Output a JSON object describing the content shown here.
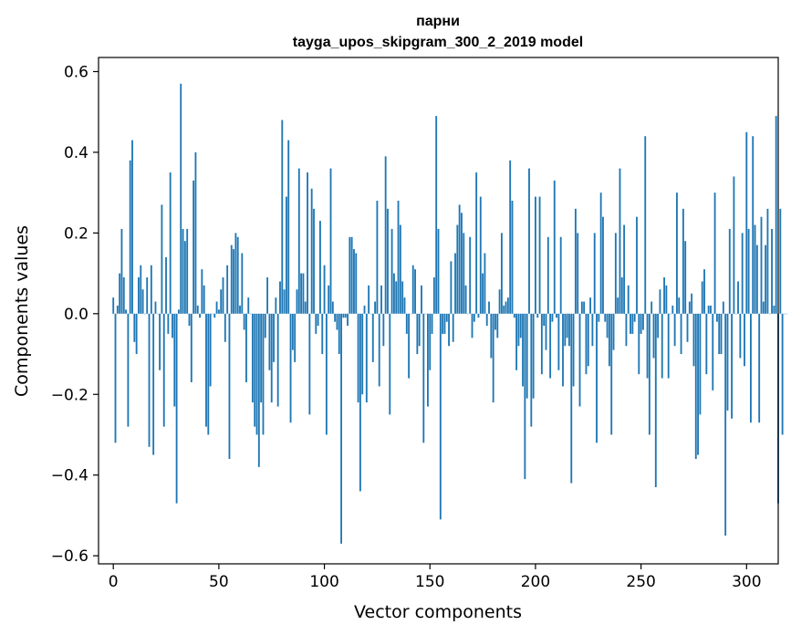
{
  "chart_data": {
    "type": "bar",
    "title": "парни",
    "subtitle": "tayga_upos_skipgram_300_2_2019 model",
    "xlabel": "Vector components",
    "ylabel": "Components values",
    "xlim": [
      -7,
      315
    ],
    "ylim": [
      -0.62,
      0.635
    ],
    "xticks": [
      0,
      50,
      100,
      150,
      200,
      250,
      300
    ],
    "yticks": [
      -0.6,
      -0.4,
      -0.2,
      0.0,
      0.2,
      0.4,
      0.6
    ],
    "xtick_labels": [
      "0",
      "50",
      "100",
      "150",
      "200",
      "250",
      "300"
    ],
    "ytick_labels": [
      "−0.6",
      "−0.4",
      "−0.2",
      "0.0",
      "0.2",
      "0.4",
      "0.6"
    ],
    "bar_color": "#1f77b4",
    "grid": false,
    "values": [
      0.04,
      -0.32,
      0.02,
      0.1,
      0.21,
      0.09,
      0.01,
      -0.28,
      0.38,
      0.43,
      -0.07,
      -0.1,
      0.09,
      0.12,
      0.06,
      0.0,
      0.09,
      -0.33,
      0.12,
      -0.35,
      0.03,
      0.0,
      -0.14,
      0.27,
      -0.28,
      0.14,
      -0.05,
      0.35,
      -0.06,
      -0.23,
      -0.47,
      0.01,
      0.57,
      0.21,
      0.18,
      0.21,
      -0.03,
      -0.17,
      0.33,
      0.4,
      0.02,
      -0.01,
      0.11,
      0.07,
      -0.28,
      -0.3,
      -0.18,
      0.0,
      -0.01,
      0.03,
      0.01,
      0.06,
      0.09,
      -0.07,
      0.12,
      -0.36,
      0.17,
      0.16,
      0.2,
      0.19,
      0.02,
      0.15,
      -0.04,
      -0.17,
      0.04,
      0.0,
      -0.22,
      -0.28,
      -0.3,
      -0.38,
      -0.22,
      -0.3,
      -0.06,
      0.09,
      -0.14,
      -0.22,
      -0.12,
      0.04,
      -0.23,
      0.08,
      0.48,
      0.06,
      0.29,
      0.43,
      -0.27,
      -0.09,
      -0.12,
      0.06,
      0.36,
      0.1,
      0.1,
      0.03,
      0.35,
      -0.25,
      0.31,
      0.26,
      -0.05,
      -0.03,
      0.23,
      -0.1,
      0.12,
      -0.3,
      0.07,
      0.36,
      0.03,
      -0.02,
      -0.04,
      -0.1,
      -0.57,
      -0.01,
      -0.01,
      -0.03,
      0.19,
      0.19,
      0.16,
      0.15,
      -0.22,
      -0.44,
      -0.2,
      0.02,
      -0.22,
      0.07,
      0.0,
      -0.12,
      0.03,
      0.28,
      -0.18,
      0.07,
      -0.08,
      0.39,
      0.26,
      -0.25,
      0.21,
      0.1,
      0.08,
      0.28,
      0.22,
      0.08,
      0.04,
      -0.05,
      -0.16,
      0.0,
      0.12,
      0.11,
      -0.1,
      -0.08,
      0.07,
      -0.32,
      0.0,
      -0.23,
      -0.14,
      -0.05,
      0.09,
      0.49,
      0.21,
      -0.51,
      -0.05,
      -0.05,
      -0.02,
      -0.08,
      0.13,
      -0.07,
      0.15,
      0.22,
      0.27,
      0.25,
      0.2,
      0.07,
      0.0,
      0.19,
      -0.06,
      -0.02,
      0.35,
      -0.01,
      0.29,
      0.1,
      0.15,
      -0.03,
      0.03,
      -0.11,
      -0.22,
      -0.04,
      -0.06,
      0.06,
      0.2,
      0.02,
      0.03,
      0.04,
      0.38,
      0.28,
      -0.01,
      -0.14,
      -0.08,
      -0.06,
      -0.18,
      -0.41,
      -0.21,
      0.36,
      -0.28,
      -0.21,
      0.29,
      -0.01,
      0.29,
      -0.15,
      -0.03,
      -0.09,
      0.19,
      -0.16,
      -0.02,
      0.33,
      -0.01,
      -0.14,
      0.19,
      -0.18,
      -0.08,
      -0.06,
      -0.08,
      -0.42,
      -0.18,
      0.26,
      0.2,
      -0.23,
      0.03,
      0.03,
      -0.15,
      -0.13,
      0.04,
      -0.08,
      0.2,
      -0.32,
      -0.02,
      0.3,
      0.24,
      -0.02,
      -0.06,
      -0.13,
      -0.3,
      -0.09,
      0.2,
      0.04,
      0.36,
      0.09,
      0.22,
      -0.08,
      0.07,
      -0.05,
      -0.05,
      -0.02,
      0.24,
      -0.15,
      -0.05,
      -0.04,
      0.44,
      -0.16,
      -0.3,
      0.03,
      -0.11,
      -0.43,
      -0.06,
      0.06,
      -0.16,
      0.09,
      0.07,
      -0.16,
      0.0,
      0.02,
      -0.08,
      0.3,
      0.04,
      -0.1,
      0.26,
      0.18,
      -0.07,
      0.03,
      0.05,
      -0.13,
      -0.36,
      -0.35,
      -0.25,
      0.08,
      0.11,
      -0.15,
      0.02,
      0.02,
      -0.19,
      0.3,
      -0.02,
      -0.1,
      -0.1,
      0.03,
      -0.55,
      -0.24,
      0.21,
      -0.26,
      0.34,
      0.0,
      0.08,
      -0.11,
      0.2,
      -0.13,
      0.45,
      0.21,
      -0.27,
      0.44,
      0.22,
      0.17,
      -0.27,
      0.24,
      0.03,
      0.17,
      0.26,
      0.0,
      0.21,
      0.02,
      0.49,
      -0.47,
      0.26,
      -0.3,
      0.0,
      0.0
    ]
  }
}
